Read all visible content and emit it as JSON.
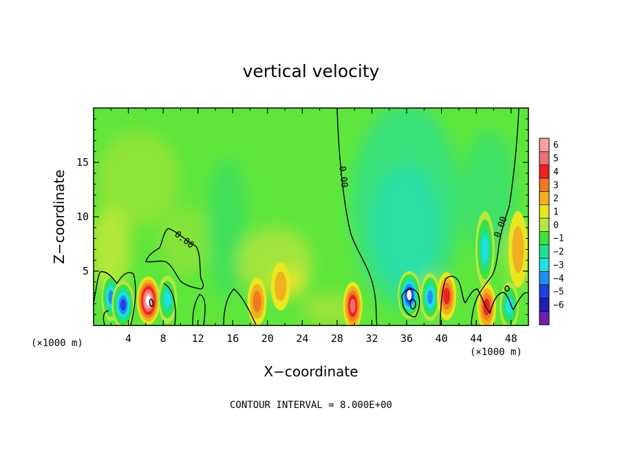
{
  "chart_data": {
    "type": "heatmap",
    "title": "vertical velocity",
    "xlabel": "X−coordinate",
    "ylabel": "Z−coordinate",
    "x_unit_label": "(×1000 m)",
    "xlim": [
      0,
      50
    ],
    "ylim": [
      0,
      20
    ],
    "x_ticks": [
      4,
      8,
      12,
      16,
      20,
      24,
      28,
      32,
      36,
      40,
      44,
      48
    ],
    "y_ticks": [
      5,
      10,
      15
    ],
    "contour_label": "0.00",
    "contour_interval_text": "CONTOUR INTERVAL = 8.000E+00",
    "colorbar": {
      "levels": [
        6,
        5,
        4,
        3,
        2,
        1,
        0,
        -1,
        -2,
        -3,
        -4,
        -5,
        -6
      ],
      "labels": [
        "6",
        "5",
        "4",
        "3",
        "2",
        "1",
        "0",
        "−1",
        "−2",
        "−3",
        "−4",
        "−5",
        "−6"
      ],
      "colors": [
        "#f4a0a0",
        "#f07070",
        "#ee2020",
        "#f07a20",
        "#f0b020",
        "#e8e820",
        "#b4e840",
        "#40e040",
        "#20e090",
        "#20e0e0",
        "#2090f0",
        "#2040e0",
        "#2020b0",
        "#7020b0"
      ]
    },
    "features": [
      {
        "x": 2.0,
        "z": 2.6,
        "value": -4.5
      },
      {
        "x": 3.4,
        "z": 1.9,
        "value": -5.5
      },
      {
        "x": 6.3,
        "z": 2.3,
        "value": 6.2
      },
      {
        "x": 8.5,
        "z": 2.4,
        "value": -3.5
      },
      {
        "x": 18.8,
        "z": 2.2,
        "value": 3.0
      },
      {
        "x": 21.5,
        "z": 3.6,
        "value": 2.0
      },
      {
        "x": 29.8,
        "z": 1.8,
        "value": 5.0
      },
      {
        "x": 36.3,
        "z": 2.8,
        "value": -7.0
      },
      {
        "x": 38.7,
        "z": 2.6,
        "value": -4.5
      },
      {
        "x": 40.6,
        "z": 2.7,
        "value": 4.0
      },
      {
        "x": 45.0,
        "z": 7.0,
        "value": -4.0
      },
      {
        "x": 45.2,
        "z": 1.7,
        "value": 3.5
      },
      {
        "x": 47.8,
        "z": 1.8,
        "value": -4.0
      },
      {
        "x": 48.8,
        "z": 7.0,
        "value": 2.0
      }
    ]
  }
}
